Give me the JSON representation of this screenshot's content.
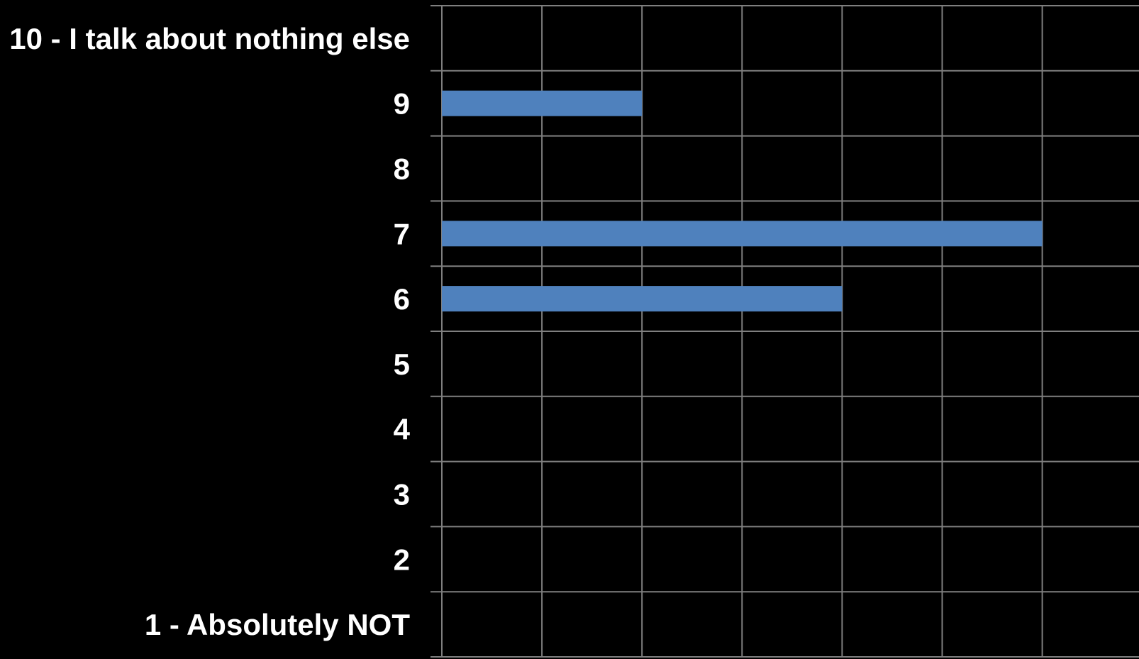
{
  "chart_data": {
    "type": "bar",
    "orientation": "horizontal",
    "categories": [
      "10 - I talk about nothing else",
      "9",
      "8",
      "7",
      "6",
      "5",
      "4",
      "3",
      "2",
      "1 - Absolutely NOT"
    ],
    "values": [
      0,
      2,
      0,
      6,
      4,
      0,
      0,
      0,
      0,
      0
    ],
    "xlim": [
      0,
      7
    ],
    "grid": true,
    "legend": "none",
    "title": "",
    "xlabel": "",
    "ylabel": "",
    "colors": {
      "background": "#000000",
      "bar": "#4F81BD",
      "grid": "#7F7F7F",
      "text": "#FFFFFF"
    }
  }
}
